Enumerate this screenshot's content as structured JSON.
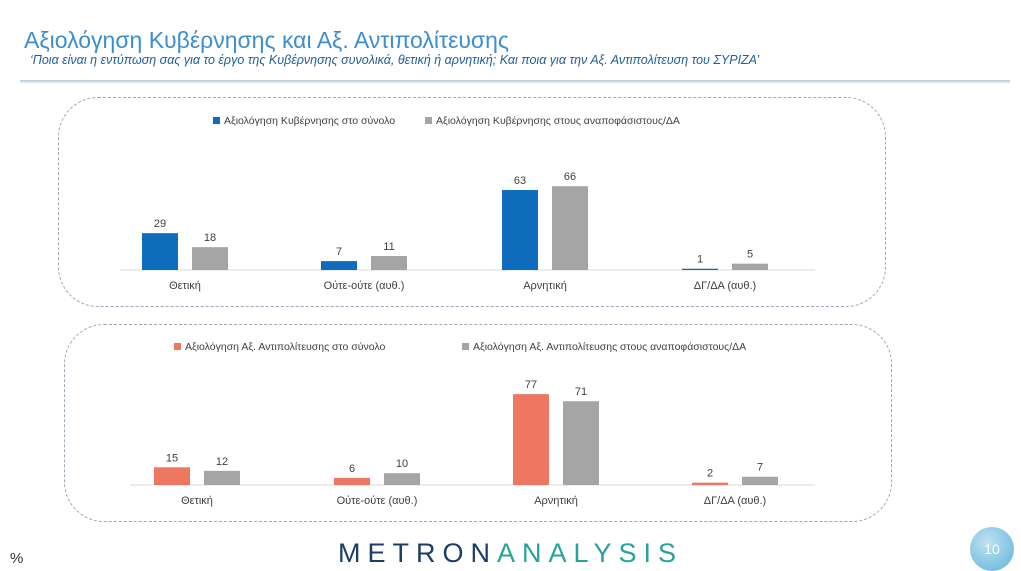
{
  "header": {
    "title": "Αξιολόγηση Κυβέρνησης και Αξ. Αντιπολίτευσης",
    "subtitle": "‘Ποια είναι η εντύπωση σας για το έργο της Κυβέρνησης συνολικά, θετική ή αρνητική; Και ποια για την Αξ. Αντιπολίτευση του ΣΥΡΙΖΑ’"
  },
  "footer": {
    "unit": "%",
    "logo_a": "METRON",
    "logo_b": "ANALYSIS",
    "page": "10"
  },
  "chart_data": [
    {
      "type": "bar",
      "categories": [
        "Θετική",
        "Ούτε-ούτε (αυθ.)",
        "Αρνητική",
        "ΔΓ/ΔΑ (αυθ.)"
      ],
      "legend": "top",
      "grid": false,
      "series": [
        {
          "name": "Αξιολόγηση Κυβέρνησης στο σύνολο",
          "color": "#0f6cbd",
          "values": [
            29,
            7,
            63,
            1
          ]
        },
        {
          "name": "Αξιολόγηση Κυβέρνησης στους αναποφάσιστους/ΔΑ",
          "color": "#a5a5a5",
          "values": [
            18,
            11,
            66,
            5
          ]
        }
      ]
    },
    {
      "type": "bar",
      "categories": [
        "Θετική",
        "Ούτε-ούτε (αυθ.)",
        "Αρνητική",
        "ΔΓ/ΔΑ (αυθ.)"
      ],
      "legend": "top",
      "grid": false,
      "series": [
        {
          "name": "Αξιολόγηση Αξ. Αντιπολίτευσης στο σύνολο",
          "color": "#ee7762",
          "values": [
            15,
            6,
            77,
            2
          ]
        },
        {
          "name": "Αξιολόγηση Αξ. Αντιπολίτευσης στους αναποφάσιστους/ΔΑ",
          "color": "#a5a5a5",
          "values": [
            12,
            10,
            71,
            7
          ]
        }
      ]
    }
  ]
}
